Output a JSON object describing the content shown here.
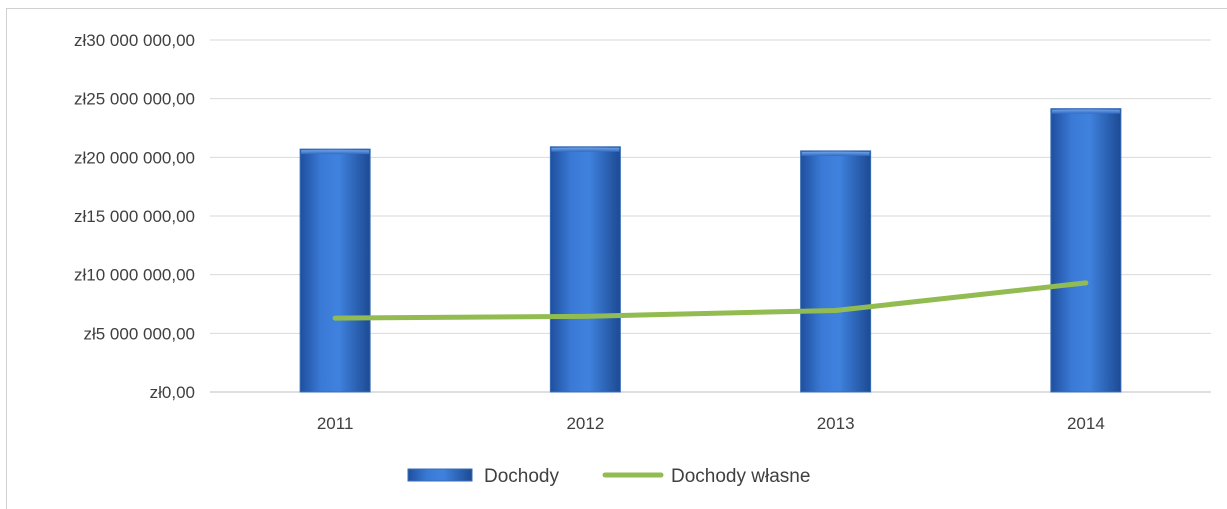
{
  "chart_data": {
    "type": "bar",
    "categories": [
      "2011",
      "2012",
      "2013",
      "2014"
    ],
    "series": [
      {
        "name": "Dochody",
        "type": "bar",
        "color": "#2f6bc4",
        "values": [
          20700000,
          20900000,
          20550000,
          24150000
        ]
      },
      {
        "name": "Dochody własne",
        "type": "line",
        "color": "#92bc52",
        "values": [
          6300000,
          6450000,
          6950000,
          9300000
        ]
      }
    ],
    "y_ticks": [
      {
        "value": 0,
        "label": "zł0,00"
      },
      {
        "value": 5000000,
        "label": "zł5 000 000,00"
      },
      {
        "value": 10000000,
        "label": "zł10 000 000,00"
      },
      {
        "value": 15000000,
        "label": "zł15 000 000,00"
      },
      {
        "value": 20000000,
        "label": "zł20 000 000,00"
      },
      {
        "value": 25000000,
        "label": "zł25 000 000,00"
      },
      {
        "value": 30000000,
        "label": "zł30 000 000,00"
      }
    ],
    "ylim": [
      0,
      30000000
    ],
    "grid": true,
    "legend_position": "bottom"
  }
}
